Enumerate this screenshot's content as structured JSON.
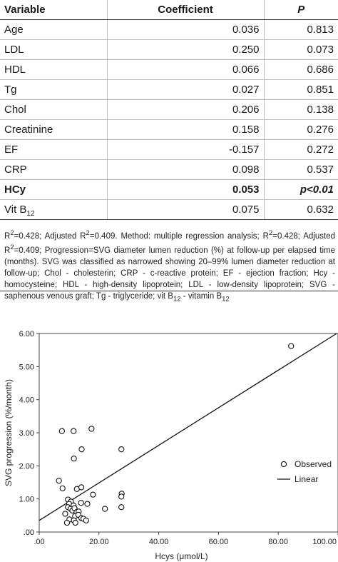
{
  "table": {
    "headers": {
      "variable": "Variable",
      "coefficient": "Coefficient",
      "p": "P"
    },
    "rows": [
      {
        "variable": "Age",
        "coefficient": "0.036",
        "p": "0.813"
      },
      {
        "variable": "LDL",
        "coefficient": "0.250",
        "p": "0.073"
      },
      {
        "variable": "HDL",
        "coefficient": "0.066",
        "p": "0.686"
      },
      {
        "variable": "Tg",
        "coefficient": "0.027",
        "p": "0.851"
      },
      {
        "variable": "Chol",
        "coefficient": "0.206",
        "p": "0.138"
      },
      {
        "variable": "Creatinine",
        "coefficient": "0.158",
        "p": "0.276"
      },
      {
        "variable": "EF",
        "coefficient": "-0.157",
        "p": "0.272"
      },
      {
        "variable": "CRP",
        "coefficient": "0.098",
        "p": "0.537"
      },
      {
        "variable": "HCy",
        "coefficient": "0.053",
        "p": "p<0.01"
      },
      {
        "variable": "Vit B",
        "variable_sub": "12",
        "coefficient": "0.075",
        "p": "0.632"
      }
    ]
  },
  "footnote": {
    "r2_a": "R",
    "r2_sup_a": "2",
    "r2_b": "=0.428; Adjusted R",
    "r2_sup_b": "2",
    "r2_c": "=0.409. Method: multiple regression analysis; R",
    "r2_sup_c": "2",
    "r2_d": "=0.428; Adjusted R",
    "r2_sup_d": "2",
    "r2_e": "=0.409; Progression=SVG diameter lumen reduction (%) at follow-up per elapsed time (months). SVG was classified as narrowed showing 20–99% lumen diameter reduction at follow-up; Chol - cholesterin; CRP - c-reactive protein; EF - ejection fraction; Hcy - homocysteine; HDL - high-density lipoprotein; LDL - low-density lipoprotein; SVG - saphenous venous graft; Tg - triglyceride; vit B",
    "sub_a": "12",
    "r2_f": " - vitamin B",
    "sub_b": "12"
  },
  "chart_data": {
    "type": "scatter",
    "xlabel": "Hcys (μmol/L)",
    "ylabel": "SVG progression (%/month)",
    "xlim": [
      0,
      100
    ],
    "ylim": [
      0,
      6
    ],
    "x_ticks": [
      ".00",
      "20.00",
      "40.00",
      "60.00",
      "80.00",
      "100.00"
    ],
    "y_ticks": [
      ".00",
      "1.00",
      "2.00",
      "3.00",
      "4.00",
      "5.00",
      "6.00"
    ],
    "grid": false,
    "legend": {
      "position": "right",
      "observed": "Observed",
      "linear": "Linear"
    },
    "series": [
      {
        "name": "Observed",
        "points": [
          [
            7.6,
            3.05
          ],
          [
            11.5,
            3.05
          ],
          [
            17.5,
            3.12
          ],
          [
            14.2,
            2.5
          ],
          [
            27.5,
            2.5
          ],
          [
            11.6,
            2.22
          ],
          [
            6.6,
            1.55
          ],
          [
            7.8,
            1.32
          ],
          [
            12.6,
            1.3
          ],
          [
            14.1,
            1.35
          ],
          [
            27.6,
            1.16
          ],
          [
            27.5,
            1.07
          ],
          [
            18.0,
            1.13
          ],
          [
            9.6,
            0.98
          ],
          [
            10.6,
            0.92
          ],
          [
            10.0,
            0.85
          ],
          [
            11.5,
            0.8
          ],
          [
            14.0,
            0.88
          ],
          [
            16.1,
            0.85
          ],
          [
            9.6,
            0.75
          ],
          [
            10.5,
            0.7
          ],
          [
            11.1,
            0.65
          ],
          [
            11.8,
            0.72
          ],
          [
            12.5,
            0.6
          ],
          [
            13.2,
            0.62
          ],
          [
            22.0,
            0.7
          ],
          [
            27.5,
            0.75
          ],
          [
            8.7,
            0.55
          ],
          [
            12.0,
            0.48
          ],
          [
            13.1,
            0.52
          ],
          [
            14.1,
            0.42
          ],
          [
            14.8,
            0.4
          ],
          [
            15.7,
            0.35
          ],
          [
            10.1,
            0.38
          ],
          [
            11.6,
            0.35
          ],
          [
            12.1,
            0.28
          ],
          [
            9.3,
            0.28
          ],
          [
            84.3,
            5.62
          ]
        ]
      },
      {
        "name": "Linear",
        "fit": {
          "intercept": 0.35,
          "slope": 0.05675
        }
      }
    ]
  },
  "colors": {
    "rule": "#333333",
    "grid_line": "#bdbdbd",
    "plot_bg": "#ffffff"
  }
}
